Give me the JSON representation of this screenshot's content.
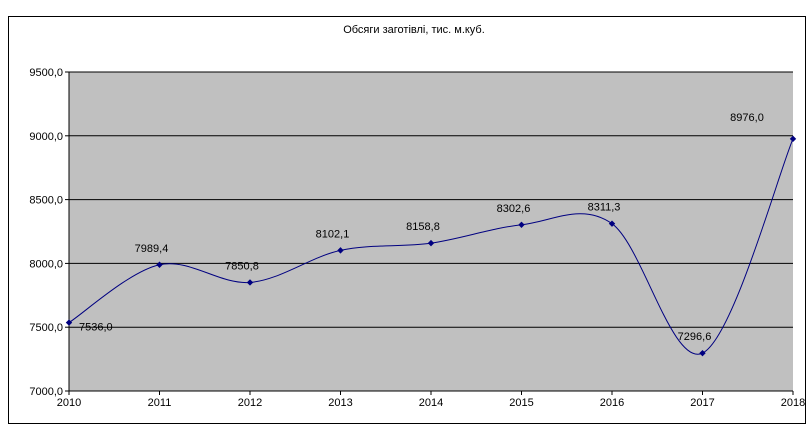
{
  "page": {
    "header_text": ""
  },
  "chart_data": {
    "type": "line",
    "title": "Обсяги заготівлі, тис. м.куб.",
    "xlabel": "",
    "ylabel": "",
    "categories": [
      "2010",
      "2011",
      "2012",
      "2013",
      "2014",
      "2015",
      "2016",
      "2017",
      "2018"
    ],
    "values": [
      7536.0,
      7989.4,
      7850.8,
      8102.1,
      8158.8,
      8302.6,
      8311.3,
      7296.6,
      8976.0
    ],
    "value_labels": [
      "7536,0",
      "7989,4",
      "7850,8",
      "8102,1",
      "8158,8",
      "8302,6",
      "8311,3",
      "7296,6",
      "8976,0"
    ],
    "ylim": [
      7000,
      9500
    ],
    "y_ticks": [
      7000,
      7500,
      8000,
      8500,
      9000,
      9500
    ],
    "y_tick_labels": [
      "7000,0",
      "7500,0",
      "8000,0",
      "8500,0",
      "9000,0",
      "9500,0"
    ],
    "grid": true,
    "smooth": true,
    "legend": "none",
    "colors": {
      "line": "#000080",
      "plot_bg": "#c0c0c0",
      "grid": "#000000"
    }
  }
}
